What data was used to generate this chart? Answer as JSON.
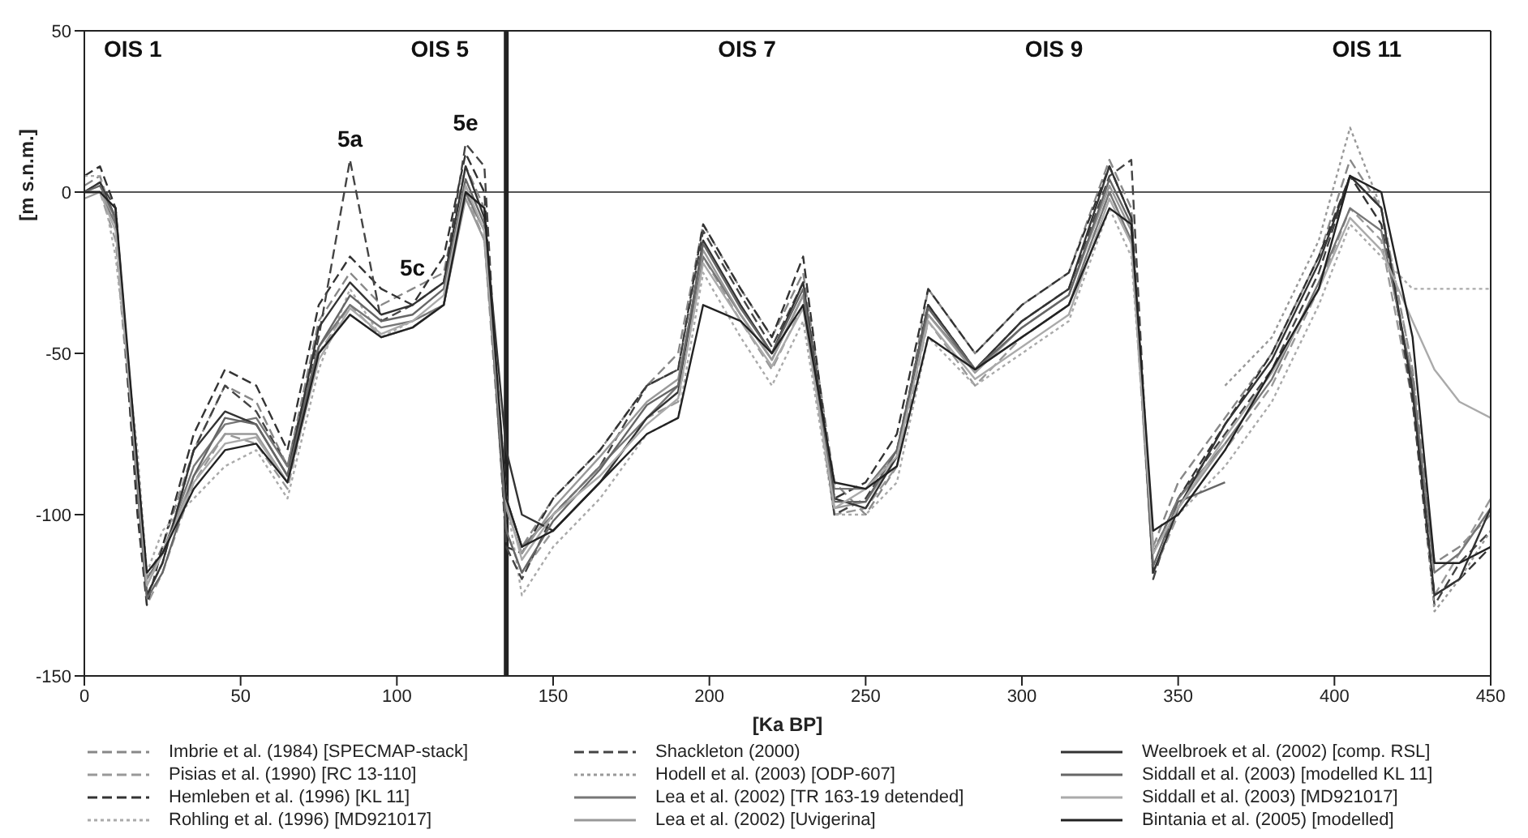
{
  "chart_data": {
    "type": "line",
    "xlabel": "[Ka BP]",
    "ylabel": "[m s.n.m.]",
    "x": [
      0,
      5,
      10,
      17,
      20,
      25,
      35,
      45,
      55,
      65,
      75,
      85,
      95,
      105,
      115,
      122,
      128,
      135,
      140,
      150,
      165,
      180,
      190,
      198,
      210,
      220,
      230,
      240,
      250,
      260,
      270,
      285,
      300,
      315,
      328,
      335,
      342,
      350,
      365,
      380,
      395,
      405,
      415,
      425,
      432,
      440,
      450
    ],
    "xlim": [
      0,
      450
    ],
    "xticks": [
      0,
      50,
      100,
      150,
      200,
      250,
      300,
      350,
      400,
      450
    ],
    "ylim": [
      -150,
      50
    ],
    "yticks": [
      -150,
      -100,
      -50,
      0,
      50
    ],
    "grid": false,
    "legend": "bottom",
    "marker": "none",
    "ref_lines": [
      {
        "axis": "y",
        "value": 0,
        "color": "#555555"
      },
      {
        "axis": "x",
        "value": 135,
        "color": "#222222"
      }
    ],
    "annotations": [
      "OIS 1",
      "OIS 5",
      "OIS 7",
      "OIS 9",
      "OIS 11",
      {
        "text": "5a",
        "x": 85,
        "y": 10
      },
      {
        "text": "5c",
        "x": 105,
        "y": -30
      },
      {
        "text": "5e",
        "x": 122,
        "y": 15
      }
    ],
    "series": [
      {
        "name": "Imbrie et al. (1984) [SPECMAP-stack]",
        "color": "#888888",
        "line_style": "dashed",
        "values": [
          2,
          5,
          -10,
          -85,
          -120,
          -110,
          -80,
          -60,
          -65,
          -85,
          -40,
          -25,
          -35,
          -30,
          -25,
          8,
          -5,
          -95,
          -110,
          -95,
          -80,
          -60,
          -50,
          -10,
          -30,
          -45,
          -25,
          -90,
          -100,
          -85,
          -30,
          -50,
          -35,
          -25,
          10,
          -5,
          -110,
          -90,
          -70,
          -50,
          -20,
          10,
          -5,
          -55,
          -115,
          -110,
          -100
        ]
      },
      {
        "name": "Pisias et al. (1990) [RC 13-110]",
        "color": "#999999",
        "line_style": "dashed",
        "values": [
          0,
          0,
          -15,
          -95,
          -128,
          -118,
          -90,
          -75,
          -78,
          -92,
          -50,
          -35,
          -45,
          -42,
          -35,
          0,
          -15,
          -105,
          -118,
          -105,
          -90,
          -70,
          -65,
          -20,
          -40,
          -55,
          -35,
          -100,
          -98,
          -85,
          -40,
          -60,
          -45,
          -35,
          0,
          -15,
          -118,
          -100,
          -80,
          -60,
          -30,
          -5,
          -15,
          -65,
          -125,
          -112,
          -95
        ]
      },
      {
        "name": "Hemleben et al. (1996) [KL 11]",
        "color": "#333333",
        "line_style": "dashed",
        "values": [
          5,
          8,
          -5,
          -100,
          -128,
          -110,
          -75,
          -55,
          -60,
          -80,
          -35,
          -20,
          -30,
          -35,
          -20,
          12,
          0,
          -110,
          -112,
          -95,
          -80,
          -60,
          -55,
          -10,
          -30,
          -45,
          -20,
          -95,
          -90,
          -75,
          -30,
          -50,
          -35,
          -25,
          8,
          -8,
          -112,
          -95,
          -72,
          -50,
          -20,
          5,
          -10,
          -60,
          -125,
          -120,
          -110
        ]
      },
      {
        "name": "Rohling et al. (1996) [MD921017]",
        "color": "#aaaaaa",
        "line_style": "dotted",
        "values": [
          5,
          5,
          -20,
          -80,
          -118,
          -105,
          -95,
          -85,
          -80,
          -95,
          -55,
          -30,
          -45,
          -40,
          -35,
          0,
          -15,
          -95,
          -125,
          -110,
          -95,
          -75,
          -70,
          -25,
          -45,
          -60,
          -40,
          -100,
          -100,
          -90,
          -45,
          -60,
          -50,
          -40,
          -5,
          -20,
          -110,
          -100,
          -85,
          -65,
          -35,
          -10,
          -20,
          -30,
          -30,
          -30,
          -30
        ]
      },
      {
        "name": "Shackleton (2000)",
        "color": "#444444",
        "line_style": "dashed",
        "values": [
          0,
          3,
          -5,
          -90,
          -125,
          -115,
          -80,
          -60,
          -68,
          -85,
          -45,
          10,
          -40,
          -35,
          -28,
          15,
          8,
          -110,
          -120,
          -100,
          -85,
          -60,
          -55,
          -12,
          -32,
          -48,
          -28,
          -100,
          -95,
          -80,
          -35,
          -55,
          -40,
          -30,
          5,
          10,
          -120,
          -95,
          -75,
          -55,
          -25,
          5,
          -5,
          -65,
          -128,
          -115,
          -105
        ]
      },
      {
        "name": "Hodell et al. (2003) [ODP-607]",
        "color": "#999999",
        "line_style": "dotted",
        "values": [
          null,
          null,
          null,
          null,
          null,
          null,
          null,
          null,
          null,
          null,
          null,
          null,
          null,
          null,
          null,
          null,
          null,
          null,
          null,
          null,
          null,
          null,
          null,
          null,
          null,
          null,
          null,
          null,
          null,
          null,
          null,
          null,
          null,
          null,
          null,
          null,
          null,
          null,
          -60,
          -45,
          -15,
          20,
          -5,
          -55,
          -130,
          -120,
          -105
        ]
      },
      {
        "name": "Lea et al. (2002) [TR 163-19 detended]",
        "color": "#777777",
        "line_style": "solid",
        "values": [
          0,
          0,
          -10,
          -85,
          -120,
          -112,
          -85,
          -72,
          -70,
          -85,
          -48,
          -35,
          -42,
          -40,
          -35,
          0,
          -12,
          -95,
          -110,
          -100,
          -85,
          -70,
          -60,
          -20,
          -38,
          -52,
          -32,
          -92,
          -92,
          -80,
          -38,
          -55,
          -45,
          -35,
          0,
          -15,
          -112,
          -95,
          -78,
          -58,
          -28,
          -5,
          -12,
          -58,
          -118,
          -112,
          -98
        ]
      },
      {
        "name": "Lea et al. (2002) [Uvigerina]",
        "color": "#999999",
        "line_style": "solid",
        "values": [
          -2,
          0,
          -8,
          -88,
          -122,
          -112,
          -88,
          -75,
          -75,
          -90,
          -50,
          -38,
          -45,
          -42,
          -35,
          -2,
          -15,
          -98,
          -112,
          -98,
          -82,
          -65,
          -58,
          -18,
          -38,
          -52,
          -32,
          -98,
          -96,
          -82,
          -38,
          -56,
          -42,
          -32,
          2,
          -12,
          -118,
          -98,
          -78,
          null,
          null,
          null,
          null,
          null,
          null,
          null,
          null
        ]
      },
      {
        "name": "Weelbroek et al. (2002) [comp. RSL]",
        "color": "#333333",
        "line_style": "solid",
        "values": [
          0,
          3,
          -8,
          -90,
          -125,
          -115,
          -80,
          -68,
          -72,
          -88,
          -42,
          -28,
          -38,
          -35,
          -28,
          8,
          -8,
          -80,
          -100,
          -105,
          -90,
          -70,
          -62,
          -15,
          -35,
          -50,
          -28,
          -95,
          -98,
          -82,
          -35,
          -55,
          -40,
          -30,
          8,
          -8,
          -118,
          -98,
          -72,
          -52,
          -22,
          5,
          -5,
          -62,
          -125,
          -120,
          -98
        ]
      },
      {
        "name": "Siddall et al. (2003) [modelled KL 11]",
        "color": "#666666",
        "line_style": "solid",
        "values": [
          0,
          2,
          -8,
          -92,
          -126,
          -118,
          -88,
          -70,
          -72,
          -88,
          -48,
          -32,
          -40,
          -38,
          -30,
          4,
          -10,
          -105,
          -118,
          -102,
          -86,
          -66,
          -60,
          -16,
          -36,
          -50,
          -30,
          -96,
          -96,
          -80,
          -36,
          -55,
          -42,
          -32,
          4,
          -10,
          -116,
          -96,
          -90,
          null,
          null,
          null,
          null,
          null,
          null,
          null,
          null
        ]
      },
      {
        "name": "Siddall et al. (2003) [MD921017]",
        "color": "#aaaaaa",
        "line_style": "solid",
        "values": [
          0,
          0,
          -12,
          -88,
          -122,
          -112,
          -90,
          -78,
          -76,
          -90,
          -52,
          -36,
          -44,
          -40,
          -32,
          2,
          -12,
          -96,
          -114,
          -100,
          -88,
          -72,
          -64,
          -22,
          -40,
          -54,
          -36,
          -98,
          -92,
          -82,
          -40,
          -58,
          -48,
          -38,
          -2,
          -16,
          -112,
          -98,
          -76,
          -56,
          -30,
          -8,
          -18,
          -40,
          -55,
          -65,
          -70
        ]
      },
      {
        "name": "Bintania et al. (2005) [modelled]",
        "color": "#222222",
        "line_style": "solid",
        "values": [
          0,
          0,
          -5,
          -85,
          -118,
          -112,
          -92,
          -80,
          -78,
          -90,
          -50,
          -38,
          -45,
          -42,
          -35,
          0,
          -5,
          -95,
          -110,
          -105,
          -90,
          -75,
          -70,
          -35,
          -40,
          -50,
          -35,
          -90,
          -92,
          -85,
          -45,
          -55,
          -45,
          -35,
          -5,
          -10,
          -105,
          -100,
          -80,
          -55,
          -30,
          5,
          0,
          -45,
          -115,
          -115,
          -110
        ]
      }
    ]
  }
}
